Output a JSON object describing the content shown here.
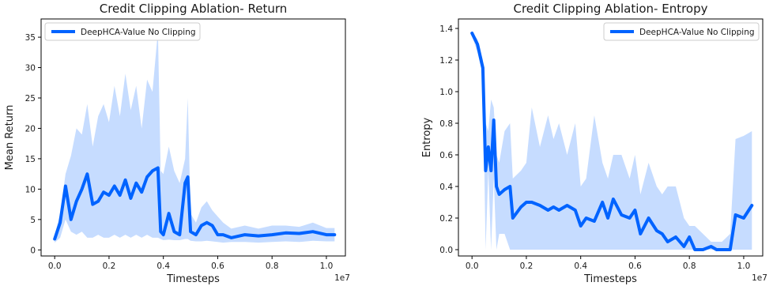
{
  "colors": {
    "line": "#0063ff",
    "band": "#c6dcff",
    "axis": "#000000"
  },
  "chart_data": [
    {
      "type": "line",
      "title": "Credit Clipping Ablation- Return",
      "xlabel": "Timesteps",
      "ylabel": "Mean Return",
      "x_offset_text": "1e7",
      "xlim": [
        -0.05,
        1.07
      ],
      "ylim": [
        -1,
        38
      ],
      "xticks": [
        0.0,
        0.2,
        0.4,
        0.6,
        0.8,
        1.0
      ],
      "xtick_labels": [
        "0.0",
        "0.2",
        "0.4",
        "0.6",
        "0.8",
        "1.0"
      ],
      "yticks": [
        0,
        5,
        10,
        15,
        20,
        25,
        30,
        35
      ],
      "ytick_labels": [
        "0",
        "5",
        "10",
        "15",
        "20",
        "25",
        "30",
        "35"
      ],
      "legend_position": "upper-left",
      "series": [
        {
          "name": "DeepHCA-Value No Clipping",
          "x": [
            0.0,
            0.02,
            0.04,
            0.06,
            0.08,
            0.1,
            0.12,
            0.14,
            0.16,
            0.18,
            0.2,
            0.22,
            0.24,
            0.26,
            0.28,
            0.3,
            0.32,
            0.34,
            0.36,
            0.38,
            0.39,
            0.4,
            0.42,
            0.44,
            0.46,
            0.48,
            0.49,
            0.5,
            0.52,
            0.54,
            0.56,
            0.58,
            0.6,
            0.62,
            0.65,
            0.7,
            0.75,
            0.8,
            0.85,
            0.9,
            0.95,
            1.0,
            1.03
          ],
          "y": [
            1.8,
            4.5,
            10.5,
            5.0,
            8.0,
            10.0,
            12.5,
            7.5,
            8.0,
            9.5,
            9.0,
            10.5,
            9.0,
            11.5,
            8.5,
            11.0,
            9.5,
            12.0,
            13.0,
            13.5,
            3.0,
            2.5,
            6.0,
            3.0,
            2.5,
            11.0,
            12.0,
            3.0,
            2.5,
            4.0,
            4.5,
            4.0,
            2.5,
            2.5,
            2.0,
            2.5,
            2.3,
            2.5,
            2.8,
            2.7,
            3.0,
            2.5,
            2.5
          ],
          "lower": [
            1.2,
            2.0,
            5.0,
            3.0,
            2.5,
            3.0,
            2.0,
            2.0,
            2.5,
            2.0,
            2.0,
            2.5,
            2.0,
            2.5,
            2.0,
            2.5,
            2.0,
            2.5,
            2.0,
            2.0,
            1.8,
            1.6,
            1.7,
            1.6,
            1.6,
            1.8,
            1.8,
            1.5,
            1.4,
            1.4,
            1.5,
            1.4,
            1.3,
            1.2,
            1.3,
            1.3,
            1.2,
            1.3,
            1.4,
            1.3,
            1.5,
            1.4,
            1.4
          ],
          "upper": [
            2.5,
            6.0,
            12.5,
            15.5,
            20.0,
            19.0,
            24.0,
            17.0,
            22.0,
            24.0,
            21.0,
            27.0,
            22.0,
            29.0,
            23.0,
            27.0,
            20.0,
            28.0,
            26.0,
            36.0,
            13.0,
            12.5,
            17.0,
            13.0,
            11.0,
            15.0,
            25.0,
            6.0,
            4.5,
            7.0,
            8.0,
            6.5,
            5.5,
            4.5,
            3.5,
            4.0,
            3.5,
            4.0,
            4.0,
            3.8,
            4.5,
            3.6,
            3.6
          ]
        }
      ]
    },
    {
      "type": "line",
      "title": "Credit Clipping Ablation- Entropy",
      "xlabel": "Timesteps",
      "ylabel": "Entropy",
      "x_offset_text": "1e7",
      "xlim": [
        -0.05,
        1.07
      ],
      "ylim": [
        -0.04,
        1.46
      ],
      "xticks": [
        0.0,
        0.2,
        0.4,
        0.6,
        0.8,
        1.0
      ],
      "xtick_labels": [
        "0.0",
        "0.2",
        "0.4",
        "0.6",
        "0.8",
        "1.0"
      ],
      "yticks": [
        0.0,
        0.2,
        0.4,
        0.6,
        0.8,
        1.0,
        1.2,
        1.4
      ],
      "ytick_labels": [
        "0.0",
        "0.2",
        "0.4",
        "0.6",
        "0.8",
        "1.0",
        "1.2",
        "1.4"
      ],
      "legend_position": "upper-right",
      "series": [
        {
          "name": "DeepHCA-Value No Clipping",
          "x": [
            0.0,
            0.02,
            0.04,
            0.05,
            0.06,
            0.07,
            0.08,
            0.09,
            0.1,
            0.12,
            0.14,
            0.15,
            0.18,
            0.2,
            0.22,
            0.25,
            0.28,
            0.3,
            0.32,
            0.35,
            0.38,
            0.4,
            0.42,
            0.45,
            0.48,
            0.5,
            0.52,
            0.55,
            0.58,
            0.6,
            0.62,
            0.65,
            0.68,
            0.7,
            0.72,
            0.75,
            0.78,
            0.8,
            0.82,
            0.85,
            0.88,
            0.9,
            0.92,
            0.95,
            0.97,
            1.0,
            1.03
          ],
          "y": [
            1.37,
            1.3,
            1.15,
            0.5,
            0.65,
            0.5,
            0.82,
            0.4,
            0.35,
            0.38,
            0.4,
            0.2,
            0.27,
            0.3,
            0.3,
            0.28,
            0.25,
            0.27,
            0.25,
            0.28,
            0.25,
            0.15,
            0.2,
            0.18,
            0.3,
            0.2,
            0.32,
            0.22,
            0.2,
            0.25,
            0.1,
            0.2,
            0.12,
            0.1,
            0.05,
            0.08,
            0.02,
            0.08,
            0.0,
            0.0,
            0.02,
            0.0,
            0.0,
            0.0,
            0.22,
            0.2,
            0.28
          ],
          "lower": [
            1.35,
            1.25,
            1.1,
            0.0,
            0.5,
            0.0,
            0.45,
            0.0,
            0.1,
            0.1,
            0.0,
            0.0,
            0.0,
            0.0,
            0.0,
            0.0,
            0.0,
            0.0,
            0.0,
            0.0,
            0.0,
            0.0,
            0.0,
            0.0,
            0.0,
            0.0,
            0.0,
            0.0,
            0.0,
            0.0,
            0.0,
            0.0,
            0.0,
            0.0,
            0.0,
            0.0,
            0.0,
            0.0,
            0.0,
            0.0,
            0.0,
            0.0,
            0.0,
            0.0,
            0.0,
            0.0,
            0.0
          ],
          "upper": [
            1.38,
            1.33,
            1.2,
            0.8,
            0.75,
            0.95,
            0.9,
            0.6,
            0.55,
            0.75,
            0.8,
            0.45,
            0.5,
            0.55,
            0.9,
            0.65,
            0.85,
            0.7,
            0.8,
            0.6,
            0.8,
            0.4,
            0.45,
            0.85,
            0.55,
            0.45,
            0.6,
            0.6,
            0.45,
            0.6,
            0.35,
            0.55,
            0.4,
            0.35,
            0.4,
            0.4,
            0.2,
            0.15,
            0.15,
            0.1,
            0.05,
            0.05,
            0.05,
            0.1,
            0.7,
            0.72,
            0.75
          ]
        }
      ]
    }
  ]
}
